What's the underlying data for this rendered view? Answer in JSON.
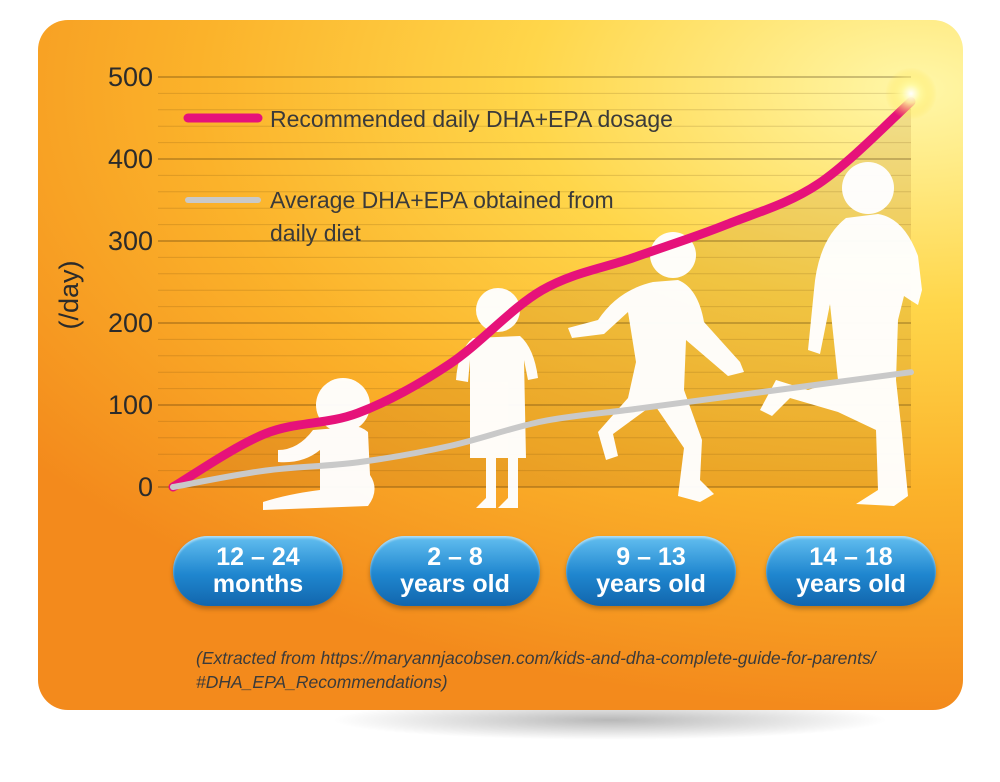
{
  "chart_data": {
    "type": "line",
    "xlabel": "",
    "ylabel": "(/day)",
    "ylim": [
      0,
      500
    ],
    "y_ticks": [
      "0",
      "100",
      "200",
      "300",
      "400",
      "500"
    ],
    "grid": true,
    "legend_position": "top-left",
    "categories": [
      "12 – 24 months",
      "2 – 8 years old",
      "9 – 13 years old",
      "14 – 18 years old"
    ],
    "series": [
      {
        "name": "Recommended daily DHA+EPA dosage",
        "color": "#e6127a",
        "x": [
          0,
          0.5,
          1,
          1.5,
          2,
          2.5,
          3,
          3.5,
          4
        ],
        "values": [
          0,
          65,
          90,
          150,
          240,
          280,
          320,
          370,
          470
        ]
      },
      {
        "name": "Average DHA+EPA obtained from daily diet",
        "color": "#c9c9c9",
        "x": [
          0,
          0.5,
          1,
          1.5,
          2,
          2.5,
          3,
          3.5,
          4
        ],
        "values": [
          0,
          20,
          30,
          50,
          80,
          95,
          110,
          125,
          140
        ]
      }
    ]
  },
  "legend": {
    "series1_label": "Recommended daily DHA+EPA dosage",
    "series2_line1": "Average DHA+EPA obtained from",
    "series2_line2": "daily diet"
  },
  "age_groups": [
    {
      "line1": "12 – 24",
      "line2": "months"
    },
    {
      "line1": "2 – 8",
      "line2": "years old"
    },
    {
      "line1": "9 – 13",
      "line2": "years old"
    },
    {
      "line1": "14 – 18",
      "line2": "years old"
    }
  ],
  "source": {
    "line1": "(Extracted from https://maryannjacobsen.com/kids-and-dha-complete-guide-for-parents/",
    "line2": "#DHA_EPA_Recommendations)"
  },
  "colors": {
    "recommended": "#e6127a",
    "diet": "#c9c9c9",
    "pill": "#1f86cf",
    "silhouette": "#ffffff"
  }
}
